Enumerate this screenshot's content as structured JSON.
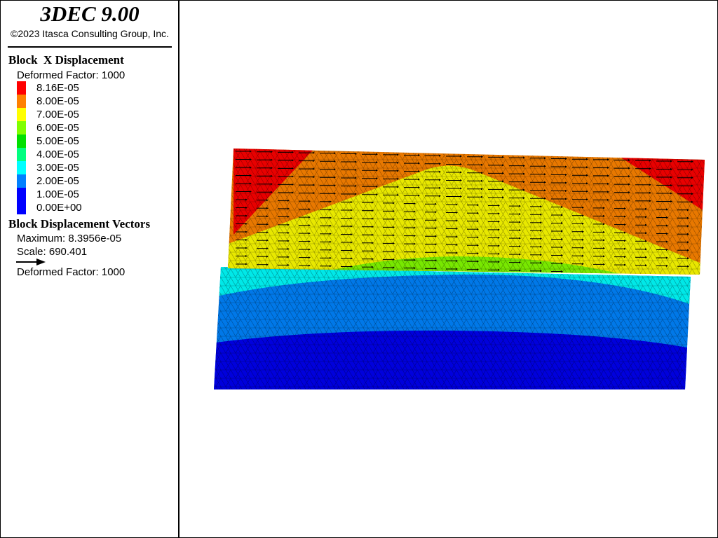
{
  "header": {
    "title": "3DEC 9.00",
    "copyright": "©2023 Itasca Consulting Group, Inc."
  },
  "contour": {
    "title": "Block  X Displacement",
    "deformed_factor": "Deformed Factor: 1000",
    "levels": [
      {
        "label": "8.16E-05",
        "color": "#ff0000"
      },
      {
        "label": "8.00E-05",
        "color": "#ff8000"
      },
      {
        "label": "7.00E-05",
        "color": "#ffff00"
      },
      {
        "label": "6.00E-05",
        "color": "#80ff00"
      },
      {
        "label": "5.00E-05",
        "color": "#00e000"
      },
      {
        "label": "4.00E-05",
        "color": "#00ff80"
      },
      {
        "label": "3.00E-05",
        "color": "#00ffff"
      },
      {
        "label": "2.00E-05",
        "color": "#0080ff"
      },
      {
        "label": "1.00E-05",
        "color": "#0000ff"
      },
      {
        "label": "0.00E+00",
        "color": "#0000ff"
      }
    ]
  },
  "vectors": {
    "title": "Block Displacement Vectors",
    "maximum": "Maximum: 8.3956e-05",
    "scale": "Scale: 690.401",
    "deformed_factor": "Deformed Factor: 1000"
  },
  "plot_colors": {
    "red": "#e80000",
    "orange": "#e87800",
    "yellow": "#e8e800",
    "green": "#78e800",
    "cyan": "#00e8e8",
    "blue": "#0078e8",
    "dark_blue": "#0000dc"
  }
}
